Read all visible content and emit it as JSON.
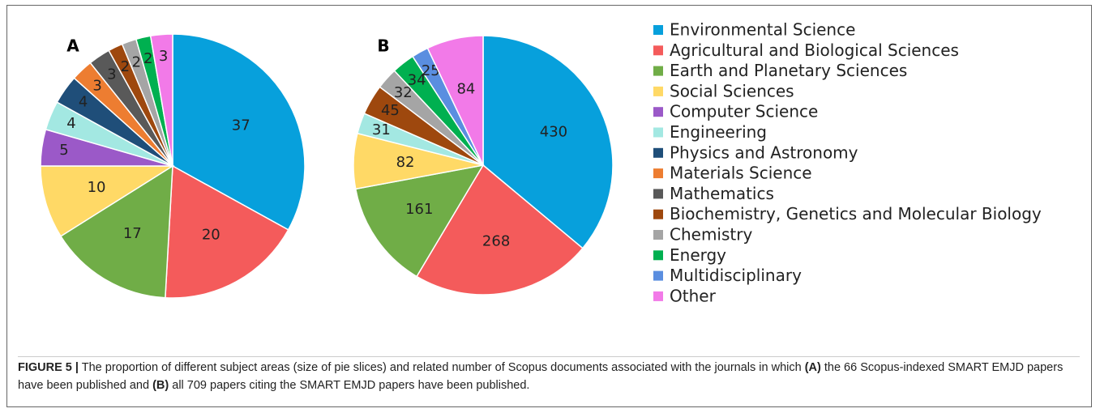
{
  "chart_data": [
    {
      "type": "pie",
      "label": "A",
      "categories": [
        "Environmental Science",
        "Agricultural and Biological Sciences",
        "Earth and Planetary Sciences",
        "Social Sciences",
        "Computer Science",
        "Engineering",
        "Physics and Astronomy",
        "Materials Science",
        "Mathematics",
        "Biochemistry, Genetics and Molecular Biology",
        "Chemistry",
        "Energy",
        "Other"
      ],
      "values": [
        37,
        20,
        17,
        10,
        5,
        4,
        4,
        3,
        3,
        2,
        2,
        2,
        3
      ],
      "colors": [
        "#07a0dc",
        "#f45b5b",
        "#70ad47",
        "#ffd966",
        "#9b59c8",
        "#a3e8e2",
        "#1f4e79",
        "#ed7d31",
        "#595959",
        "#9e480e",
        "#a5a5a5",
        "#00b050",
        "#f27ae8"
      ]
    },
    {
      "type": "pie",
      "label": "B",
      "categories": [
        "Environmental Science",
        "Agricultural and Biological Sciences",
        "Earth and Planetary Sciences",
        "Social Sciences",
        "Engineering",
        "Biochemistry, Genetics and Molecular Biology",
        "Chemistry",
        "Energy",
        "Multidisciplinary",
        "Other"
      ],
      "values": [
        430,
        268,
        161,
        82,
        31,
        45,
        32,
        34,
        25,
        84
      ],
      "colors": [
        "#07a0dc",
        "#f45b5b",
        "#70ad47",
        "#ffd966",
        "#a3e8e2",
        "#9e480e",
        "#a5a5a5",
        "#00b050",
        "#5a8ee0",
        "#f27ae8"
      ]
    }
  ],
  "caption": {
    "figure": "FIGURE 5 |",
    "text1": " The proportion of different subject areas (size of pie slices) and related number of Scopus documents associated with the journals in which ",
    "a": "(A)",
    "text2": " the 66 Scopus-indexed SMART EMJD papers have been published and ",
    "b": "(B)",
    "text3": " all 709 papers citing the SMART EMJD papers have been published."
  }
}
